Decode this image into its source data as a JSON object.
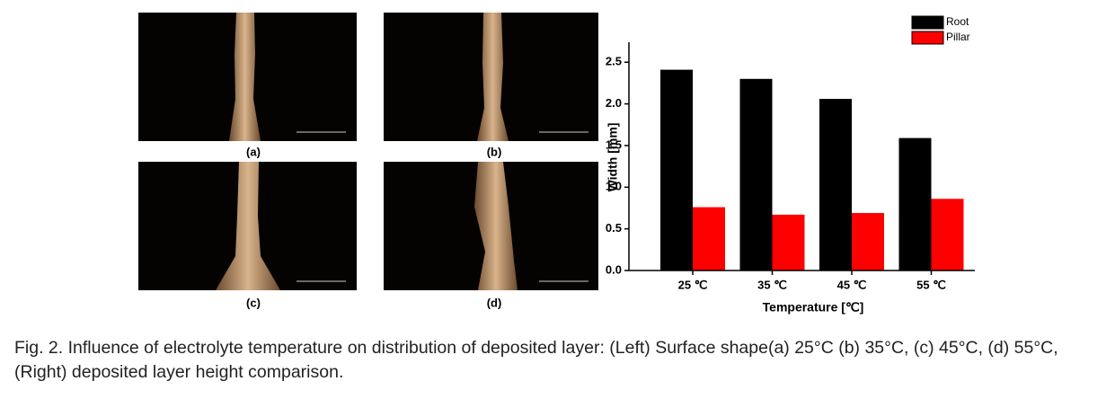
{
  "panels": [
    {
      "label": "(a)"
    },
    {
      "label": "(b)"
    },
    {
      "label": "(c)"
    },
    {
      "label": "(d)"
    }
  ],
  "chart_data": {
    "type": "bar",
    "x_label": "Temperature [℃]",
    "y_label": "Width [mm]",
    "categories": [
      "25 ℃",
      "35 ℃",
      "45 ℃",
      "55 ℃"
    ],
    "series": [
      {
        "name": "Root",
        "color": "#000000",
        "values": [
          2.41,
          2.3,
          2.06,
          1.59
        ]
      },
      {
        "name": "Pillar",
        "color": "#ff0000",
        "values": [
          0.76,
          0.67,
          0.69,
          0.86
        ]
      }
    ],
    "ylim": [
      0,
      2.74
    ],
    "yticks": [
      {
        "value": 0,
        "label": "0.0"
      },
      0.5,
      {
        "value": 1,
        "label": "1.0"
      },
      1.5,
      {
        "value": 2,
        "label": "2.0"
      },
      2.5
    ],
    "legend": "top-right"
  },
  "caption": "Fig. 2. Influence of electrolyte temperature on distribution of deposited layer: (Left) Surface shape(a) 25°C (b) 35°C, (c) 45°C, (d) 55°C, (Right) deposited layer height comparison."
}
